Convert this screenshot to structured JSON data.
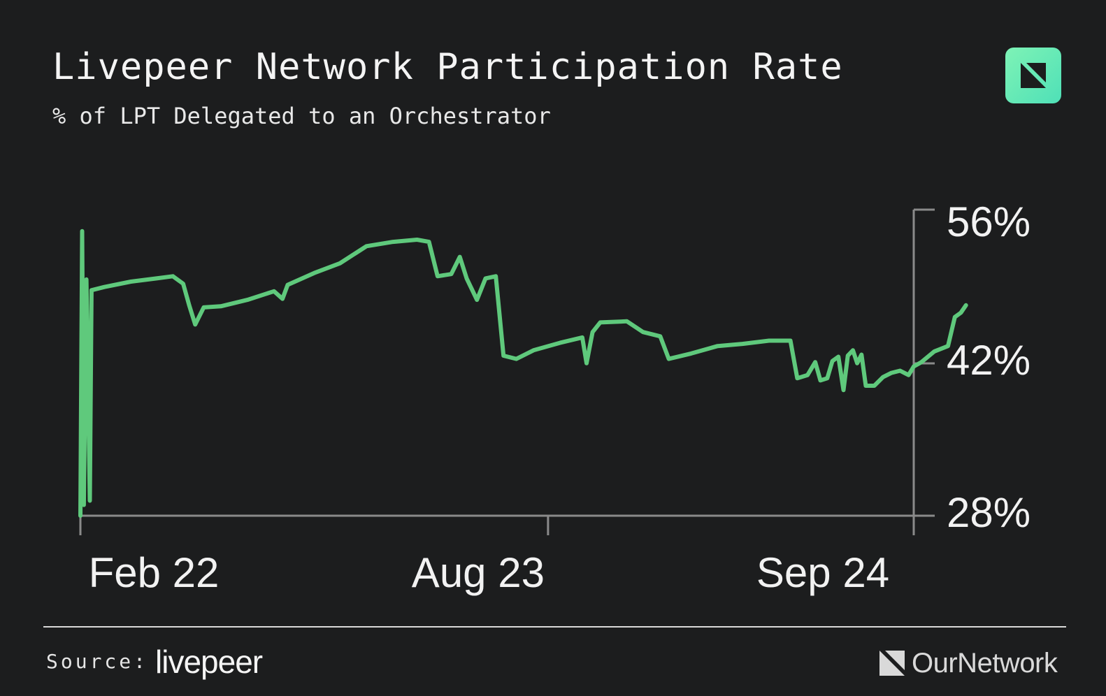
{
  "header": {
    "title": "Livepeer Network Participation Rate",
    "subtitle": "% of LPT Delegated to an Orchestrator"
  },
  "badge": {
    "icon": "ournetwork-logo-icon",
    "color": "#5fe9b6"
  },
  "chart_data": {
    "type": "line",
    "title": "Livepeer Network Participation Rate",
    "subtitle": "% of LPT Delegated to an Orchestrator",
    "xlabel": "",
    "ylabel": "",
    "x_ticks": [
      "Feb 22",
      "Aug 23",
      "Sep 24"
    ],
    "y_ticks": [
      "56%",
      "42%",
      "28%"
    ],
    "y_axis_side": "right",
    "grid": false,
    "legend": "none",
    "xlim": [
      "2022-02",
      "2024-10"
    ],
    "ylim": [
      27.5,
      56
    ],
    "line_color": "#5fc97c",
    "series": [
      {
        "values": [
          [
            "2022-02-01",
            27.5
          ],
          [
            "2022-02-03",
            54.0
          ],
          [
            "2022-02-05",
            28.5
          ],
          [
            "2022-02-08",
            49.5
          ],
          [
            "2022-02-12",
            28.9
          ],
          [
            "2022-02-14",
            48.5
          ],
          [
            "2022-03-01",
            48.8
          ],
          [
            "2022-04-01",
            49.3
          ],
          [
            "2022-05-01",
            49.6
          ],
          [
            "2022-05-20",
            49.8
          ],
          [
            "2022-06-01",
            49.1
          ],
          [
            "2022-06-08",
            47.1
          ],
          [
            "2022-06-15",
            45.3
          ],
          [
            "2022-06-25",
            46.9
          ],
          [
            "2022-07-15",
            47.0
          ],
          [
            "2022-08-15",
            47.6
          ],
          [
            "2022-09-15",
            48.4
          ],
          [
            "2022-09-25",
            47.7
          ],
          [
            "2022-10-01",
            49.0
          ],
          [
            "2022-11-01",
            50.1
          ],
          [
            "2022-12-01",
            51.0
          ],
          [
            "2023-01-01",
            52.6
          ],
          [
            "2023-02-01",
            53.0
          ],
          [
            "2023-03-01",
            53.2
          ],
          [
            "2023-03-15",
            53.0
          ],
          [
            "2023-03-25",
            49.8
          ],
          [
            "2023-04-10",
            50.0
          ],
          [
            "2023-04-20",
            51.6
          ],
          [
            "2023-04-28",
            49.6
          ],
          [
            "2023-05-10",
            47.6
          ],
          [
            "2023-05-20",
            49.6
          ],
          [
            "2023-06-01",
            49.8
          ],
          [
            "2023-06-10",
            42.4
          ],
          [
            "2023-06-25",
            42.1
          ],
          [
            "2023-07-15",
            42.9
          ],
          [
            "2023-08-15",
            43.6
          ],
          [
            "2023-09-10",
            44.1
          ],
          [
            "2023-09-15",
            41.7
          ],
          [
            "2023-09-22",
            44.6
          ],
          [
            "2023-10-01",
            45.5
          ],
          [
            "2023-11-01",
            45.6
          ],
          [
            "2023-11-20",
            44.6
          ],
          [
            "2023-12-10",
            44.2
          ],
          [
            "2023-12-20",
            42.1
          ],
          [
            "2024-01-15",
            42.6
          ],
          [
            "2024-02-15",
            43.3
          ],
          [
            "2024-03-15",
            43.5
          ],
          [
            "2024-04-15",
            43.8
          ],
          [
            "2024-05-10",
            43.8
          ],
          [
            "2024-05-18",
            40.3
          ],
          [
            "2024-05-30",
            40.6
          ],
          [
            "2024-06-08",
            41.8
          ],
          [
            "2024-06-14",
            40.1
          ],
          [
            "2024-06-22",
            40.3
          ],
          [
            "2024-06-28",
            41.9
          ],
          [
            "2024-07-05",
            42.3
          ],
          [
            "2024-07-11",
            39.2
          ],
          [
            "2024-07-16",
            42.4
          ],
          [
            "2024-07-22",
            42.9
          ],
          [
            "2024-07-27",
            41.7
          ],
          [
            "2024-08-01",
            42.5
          ],
          [
            "2024-08-06",
            39.6
          ],
          [
            "2024-08-16",
            39.6
          ],
          [
            "2024-08-26",
            40.4
          ],
          [
            "2024-09-05",
            40.8
          ],
          [
            "2024-09-15",
            41.0
          ],
          [
            "2024-09-25",
            40.6
          ],
          [
            "2024-10-01",
            41.4
          ],
          [
            "2024-10-10",
            41.8
          ],
          [
            "2024-10-25",
            42.8
          ],
          [
            "2024-11-10",
            43.3
          ],
          [
            "2024-11-18",
            46.0
          ],
          [
            "2024-11-25",
            46.4
          ],
          [
            "2024-12-01",
            47.1
          ]
        ]
      }
    ]
  },
  "footer": {
    "source_label": "Source:",
    "source_logo": "livepeer",
    "publisher": "OurNetwork",
    "publisher_icon": "ournetwork-logo-icon"
  }
}
